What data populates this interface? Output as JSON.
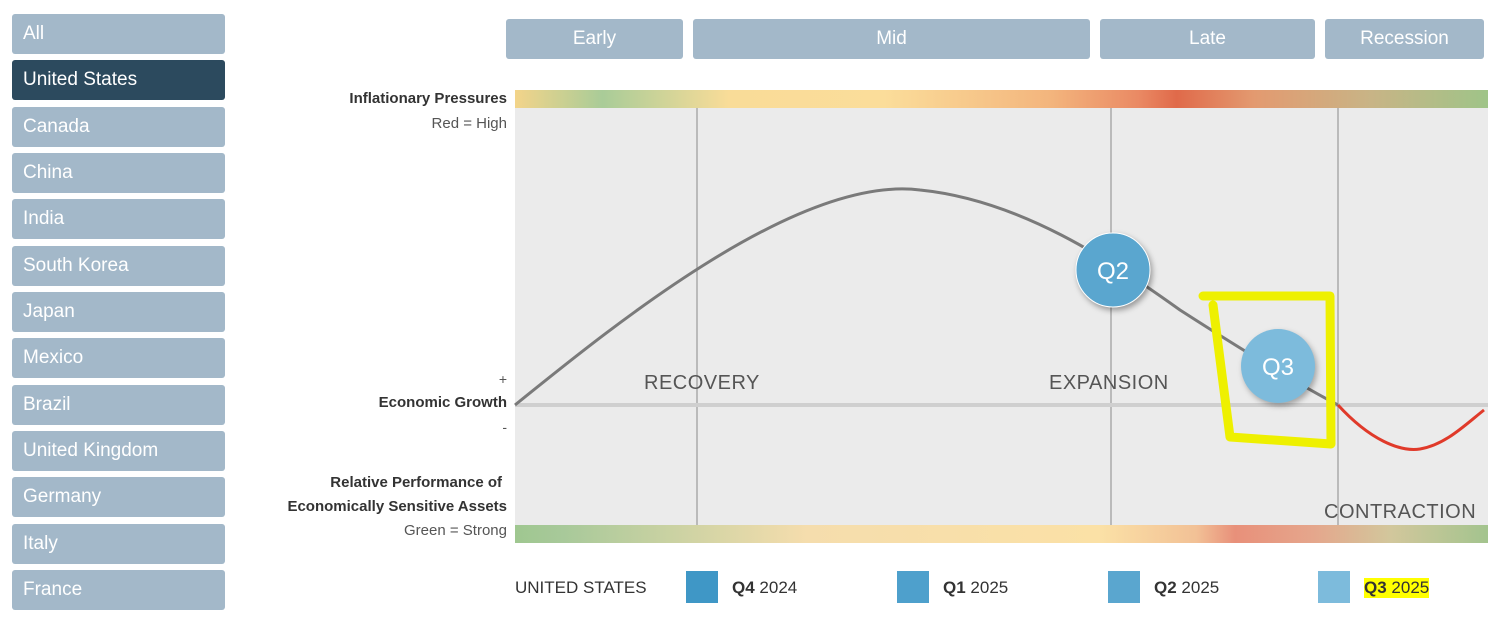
{
  "sidebar": {
    "items": [
      {
        "label": "All"
      },
      {
        "label": "United States"
      },
      {
        "label": "Canada"
      },
      {
        "label": "China"
      },
      {
        "label": "India"
      },
      {
        "label": "South Korea"
      },
      {
        "label": "Japan"
      },
      {
        "label": "Mexico"
      },
      {
        "label": "Brazil"
      },
      {
        "label": "United Kingdom"
      },
      {
        "label": "Germany"
      },
      {
        "label": "Italy"
      },
      {
        "label": "France"
      }
    ],
    "selected": "United States"
  },
  "phases": [
    "Early",
    "Mid",
    "Late",
    "Recession"
  ],
  "chart": {
    "inflation_title": "Inflationary Pressures",
    "inflation_sub": "Red = High",
    "growth_plus": "+",
    "growth_title": "Economic Growth",
    "growth_minus": "-",
    "perf_title_1": "Relative Performance of",
    "perf_title_2": "Economically Sensitive Assets",
    "perf_sub": "Green = Strong",
    "regions": {
      "recovery": "RECOVERY",
      "expansion": "EXPANSION",
      "contraction": "CONTRACTION"
    },
    "markers": [
      {
        "label": "Q2",
        "color": "#5aa6cf"
      },
      {
        "label": "Q3",
        "color": "#7dbbdc"
      }
    ],
    "curve_color": "#7a7a7a",
    "contraction_color": "#e03a2a",
    "annotation_color": "#eef000"
  },
  "legend": {
    "country": "UNITED STATES",
    "items": [
      {
        "quarter": "Q4",
        "year": "2024",
        "color": "#3f97c6"
      },
      {
        "quarter": "Q1",
        "year": "2025",
        "color": "#4ea0cc"
      },
      {
        "quarter": "Q2",
        "year": "2025",
        "color": "#5aa6cf"
      },
      {
        "quarter": "Q3",
        "year": "2025",
        "color": "#7dbbdc"
      }
    ]
  }
}
